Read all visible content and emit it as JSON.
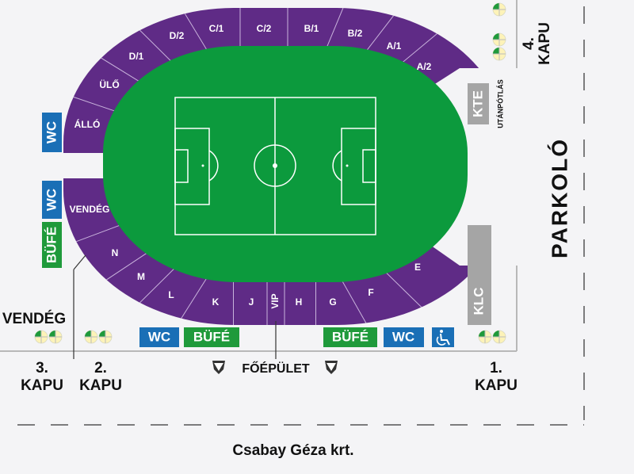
{
  "colors": {
    "stand": "#5f2b86",
    "field": "#0c9a3d",
    "wc": "#1a6fb6",
    "bufe": "#1f9a3b",
    "gray": "#a5a5a5"
  },
  "sections": [
    {
      "id": "D/2",
      "label": "D/2"
    },
    {
      "id": "C/1",
      "label": "C/1"
    },
    {
      "id": "C/2",
      "label": "C/2"
    },
    {
      "id": "B/1",
      "label": "B/1"
    },
    {
      "id": "B/2",
      "label": "B/2"
    },
    {
      "id": "A/1",
      "label": "A/1"
    },
    {
      "id": "A/2",
      "label": "A/2"
    },
    {
      "id": "D/1",
      "label": "D/1"
    },
    {
      "id": "ULO",
      "label": "ÜLŐ"
    },
    {
      "id": "ALLO",
      "label": "ÁLLÓ"
    },
    {
      "id": "VENDEG",
      "label": "VENDÉG"
    },
    {
      "id": "N",
      "label": "N"
    },
    {
      "id": "M",
      "label": "M"
    },
    {
      "id": "L",
      "label": "L"
    },
    {
      "id": "K",
      "label": "K"
    },
    {
      "id": "J",
      "label": "J"
    },
    {
      "id": "VIP",
      "label": "VIP"
    },
    {
      "id": "H",
      "label": "H"
    },
    {
      "id": "G",
      "label": "G"
    },
    {
      "id": "F",
      "label": "F"
    },
    {
      "id": "E",
      "label": "E"
    }
  ],
  "facilities": {
    "wc": "WC",
    "bufe": "BÜFÉ",
    "wheelchair_icon": "wheelchair-icon",
    "kte": "KTE",
    "utanpotlas": "UTÁNPÓTLÁS",
    "klc": "KLC"
  },
  "gates": {
    "g1_num": "1.",
    "g2_num": "2.",
    "g3_num": "3.",
    "g4_num": "4.",
    "kapu": "KAPU",
    "vendeg": "VENDÉG"
  },
  "places": {
    "main_building": "FŐÉPÜLET",
    "parking": "PARKOLÓ",
    "street": "Csabay Géza krt."
  }
}
